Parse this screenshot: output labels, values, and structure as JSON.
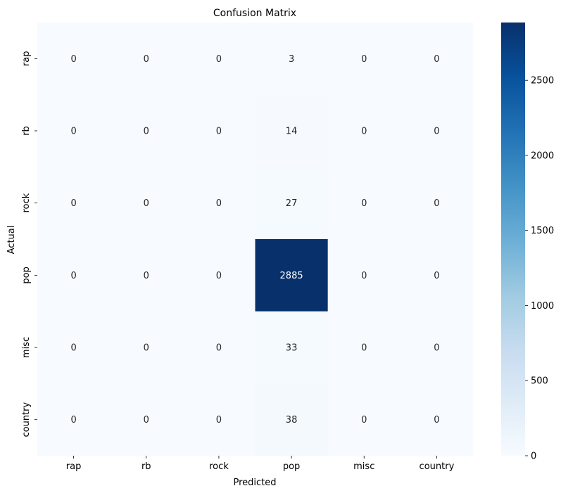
{
  "chart_data": {
    "type": "heatmap",
    "title": "Confusion Matrix",
    "xlabel": "Predicted",
    "ylabel": "Actual",
    "x_categories": [
      "rap",
      "rb",
      "rock",
      "pop",
      "misc",
      "country"
    ],
    "y_categories": [
      "rap",
      "rb",
      "rock",
      "pop",
      "misc",
      "country"
    ],
    "values": [
      [
        0,
        0,
        0,
        3,
        0,
        0
      ],
      [
        0,
        0,
        0,
        14,
        0,
        0
      ],
      [
        0,
        0,
        0,
        27,
        0,
        0
      ],
      [
        0,
        0,
        0,
        2885,
        0,
        0
      ],
      [
        0,
        0,
        0,
        33,
        0,
        0
      ],
      [
        0,
        0,
        0,
        38,
        0,
        0
      ]
    ],
    "colormap": "Blues",
    "color_range": [
      0,
      2885
    ],
    "colorbar_ticks": [
      0,
      500,
      1000,
      1500,
      2000,
      2500
    ]
  }
}
